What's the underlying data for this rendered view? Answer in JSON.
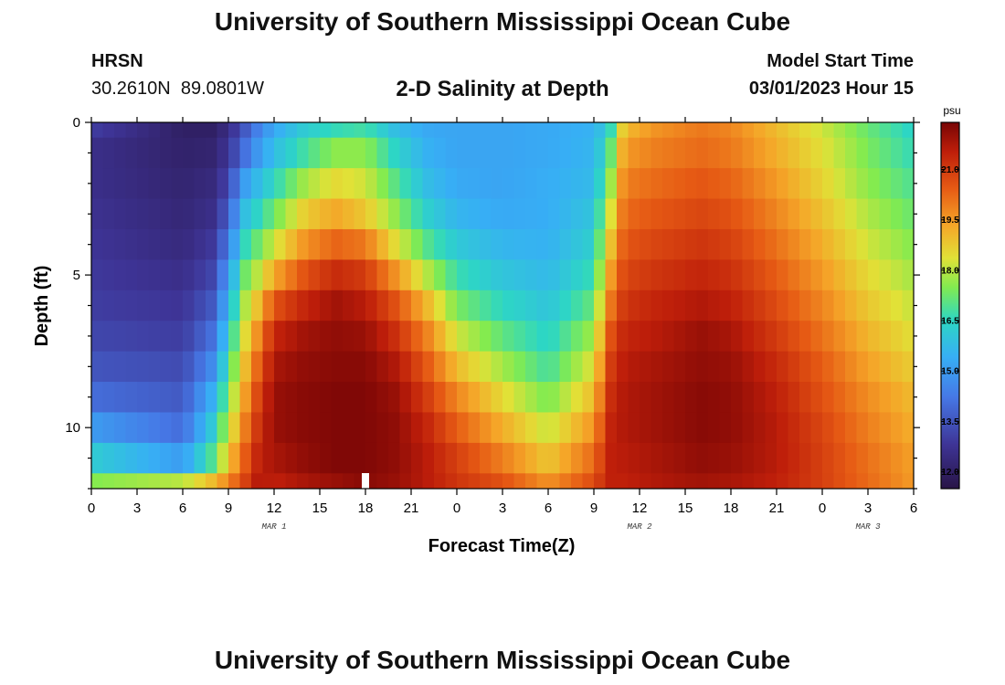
{
  "header": {
    "title": "University of Southern Mississippi Ocean Cube",
    "station": "HRSN",
    "coordinates": "30.2610N  89.0801W",
    "subtitle": "2-D Salinity at Depth",
    "start_label": "Model Start Time",
    "start_value": "03/01/2023 Hour 15"
  },
  "footer": {
    "title": "University of Southern Mississippi Ocean Cube"
  },
  "colors": {
    "current_time_marker": "#ffffff",
    "axis": "#000000",
    "background": "#ffffff"
  },
  "chart_data": {
    "type": "heatmap",
    "title": "2-D Salinity at Depth",
    "xlabel": "Forecast Time(Z)",
    "ylabel": "Depth (ft)",
    "x_range_hours": [
      0,
      54
    ],
    "y_range_ft": [
      0,
      12
    ],
    "y_inverted": true,
    "x_tick_hours": [
      0,
      3,
      6,
      9,
      12,
      15,
      18,
      21,
      24,
      27,
      30,
      33,
      36,
      39,
      42,
      45,
      48,
      51,
      54
    ],
    "x_tick_labels": [
      "0",
      "3",
      "6",
      "9",
      "12",
      "15",
      "18",
      "21",
      "0",
      "3",
      "6",
      "9",
      "12",
      "15",
      "18",
      "21",
      "0",
      "3",
      "6"
    ],
    "y_major_ticks": [
      0,
      5,
      10
    ],
    "y_tick_labels": [
      "0",
      "5",
      "10"
    ],
    "date_labels": [
      {
        "label": "MAR 1",
        "hour": 12
      },
      {
        "label": "MAR 2",
        "hour": 36
      },
      {
        "label": "MAR 3",
        "hour": 51
      }
    ],
    "current_time_hour": 18,
    "colorbar": {
      "unit": "psu",
      "vmin": 11.5,
      "vmax": 22.4,
      "tick_values": [
        12.0,
        13.5,
        15.0,
        16.5,
        18.0,
        19.5,
        21.0
      ],
      "tick_labels": [
        "12.0",
        "13.5",
        "15.0",
        "16.5",
        "18.0",
        "19.5",
        "21.0"
      ]
    },
    "depth_levels_ft": [
      0,
      1,
      2,
      3,
      4,
      5,
      6,
      7,
      8,
      9,
      10,
      11,
      12
    ],
    "salinity_profiles": [
      {
        "hour": 0,
        "values": [
          13.0,
          12.6,
          12.6,
          12.7,
          12.8,
          12.9,
          13.0,
          13.2,
          13.5,
          14.0,
          15.0,
          16.2,
          17.5
        ]
      },
      {
        "hour": 6,
        "values": [
          12.0,
          12.1,
          12.2,
          12.3,
          12.4,
          12.6,
          12.8,
          13.0,
          13.3,
          13.6,
          14.0,
          15.0,
          18.0
        ]
      },
      {
        "hour": 8,
        "values": [
          12.0,
          12.2,
          12.4,
          12.6,
          12.9,
          13.2,
          13.6,
          14.1,
          14.7,
          15.5,
          16.2,
          17.0,
          19.0
        ]
      },
      {
        "hour": 9,
        "values": [
          12.5,
          12.8,
          13.2,
          13.7,
          14.3,
          15.0,
          15.6,
          16.2,
          16.8,
          17.4,
          18.0,
          18.8,
          19.8
        ]
      },
      {
        "hour": 10,
        "values": [
          13.5,
          14.0,
          15.0,
          15.8,
          16.5,
          17.2,
          17.8,
          18.3,
          18.8,
          19.3,
          19.8,
          20.3,
          20.8
        ]
      },
      {
        "hour": 11,
        "values": [
          14.5,
          15.0,
          15.8,
          16.5,
          17.3,
          18.1,
          19.0,
          19.8,
          20.4,
          20.9,
          21.2,
          21.5,
          21.7
        ]
      },
      {
        "hour": 12,
        "values": [
          15.3,
          15.8,
          16.5,
          17.3,
          18.2,
          19.3,
          20.6,
          21.4,
          21.8,
          22.0,
          22.0,
          21.8,
          21.5
        ]
      },
      {
        "hour": 14,
        "values": [
          16.2,
          16.8,
          17.8,
          18.7,
          19.6,
          20.6,
          21.4,
          21.9,
          22.1,
          22.2,
          22.2,
          22.1,
          21.8
        ]
      },
      {
        "hour": 16,
        "values": [
          16.6,
          17.6,
          18.5,
          19.3,
          20.3,
          21.3,
          21.9,
          22.1,
          22.2,
          22.3,
          22.3,
          22.3,
          22.0
        ]
      },
      {
        "hour": 18,
        "values": [
          16.8,
          17.6,
          18.2,
          18.8,
          20.0,
          21.0,
          21.6,
          22.0,
          22.2,
          22.3,
          22.3,
          22.3,
          22.2
        ]
      },
      {
        "hour": 20,
        "values": [
          15.8,
          16.4,
          17.0,
          17.6,
          18.4,
          19.6,
          20.6,
          21.2,
          21.7,
          22.0,
          22.1,
          22.1,
          22.0
        ]
      },
      {
        "hour": 22,
        "values": [
          15.3,
          15.5,
          15.8,
          16.3,
          17.0,
          18.0,
          19.1,
          19.9,
          20.5,
          21.0,
          21.4,
          21.6,
          21.6
        ]
      },
      {
        "hour": 24,
        "values": [
          15.2,
          15.2,
          15.3,
          15.6,
          16.1,
          16.7,
          17.4,
          18.2,
          19.0,
          19.8,
          20.4,
          20.9,
          21.1
        ]
      },
      {
        "hour": 27,
        "values": [
          15.2,
          15.2,
          15.2,
          15.3,
          15.6,
          16.0,
          16.5,
          17.1,
          17.8,
          18.5,
          19.2,
          19.9,
          20.6
        ]
      },
      {
        "hour": 30,
        "values": [
          15.3,
          15.3,
          15.4,
          15.4,
          15.5,
          15.7,
          16.0,
          16.4,
          16.8,
          17.4,
          18.1,
          18.8,
          19.6
        ]
      },
      {
        "hour": 33,
        "values": [
          15.5,
          15.6,
          15.7,
          16.0,
          16.3,
          16.7,
          17.2,
          17.8,
          18.4,
          19.0,
          19.6,
          20.2,
          20.7
        ]
      },
      {
        "hour": 34,
        "values": [
          16.3,
          16.9,
          17.5,
          18.1,
          18.7,
          19.3,
          19.9,
          20.5,
          20.9,
          21.2,
          21.4,
          21.5,
          21.5
        ]
      },
      {
        "hour": 35,
        "values": [
          19.0,
          19.5,
          19.9,
          20.2,
          20.5,
          20.8,
          21.1,
          21.4,
          21.6,
          21.7,
          21.7,
          21.6,
          21.5
        ]
      },
      {
        "hour": 37,
        "values": [
          19.6,
          19.9,
          20.2,
          20.5,
          20.8,
          21.1,
          21.4,
          21.6,
          21.8,
          21.9,
          21.9,
          21.8,
          21.7
        ]
      },
      {
        "hour": 40,
        "values": [
          20.0,
          20.2,
          20.5,
          20.8,
          21.1,
          21.4,
          21.7,
          22.0,
          22.1,
          22.2,
          22.2,
          22.1,
          21.9
        ]
      },
      {
        "hour": 42,
        "values": [
          19.8,
          20.0,
          20.3,
          20.6,
          20.9,
          21.2,
          21.5,
          21.8,
          22.0,
          22.1,
          22.1,
          22.0,
          21.8
        ]
      },
      {
        "hour": 45,
        "values": [
          19.0,
          19.2,
          19.5,
          19.8,
          20.1,
          20.4,
          20.7,
          21.0,
          21.3,
          21.5,
          21.6,
          21.6,
          21.5
        ]
      },
      {
        "hour": 48,
        "values": [
          18.2,
          18.4,
          18.6,
          18.9,
          19.2,
          19.5,
          19.8,
          20.1,
          20.4,
          20.6,
          20.8,
          20.9,
          20.9
        ]
      },
      {
        "hour": 51,
        "values": [
          17.2,
          17.4,
          17.6,
          17.9,
          18.2,
          18.5,
          18.8,
          19.1,
          19.4,
          19.7,
          19.9,
          20.1,
          20.2
        ]
      },
      {
        "hour": 54,
        "values": [
          16.4,
          16.6,
          16.9,
          17.2,
          17.5,
          17.8,
          18.1,
          18.4,
          18.7,
          19.0,
          19.2,
          19.4,
          19.5
        ]
      }
    ]
  }
}
